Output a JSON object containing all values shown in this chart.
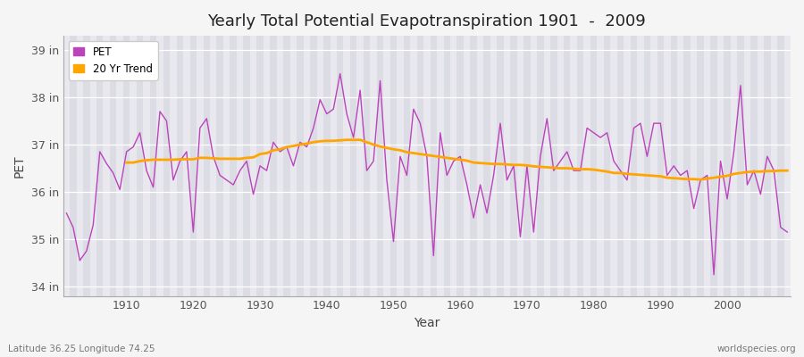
{
  "title": "Yearly Total Potential Evapotranspiration 1901  -  2009",
  "xlabel": "Year",
  "ylabel": "PET",
  "subtitle_left": "Latitude 36.25 Longitude 74.25",
  "subtitle_right": "worldspecies.org",
  "years": [
    1901,
    1902,
    1903,
    1904,
    1905,
    1906,
    1907,
    1908,
    1909,
    1910,
    1911,
    1912,
    1913,
    1914,
    1915,
    1916,
    1917,
    1918,
    1919,
    1920,
    1921,
    1922,
    1923,
    1924,
    1925,
    1926,
    1927,
    1928,
    1929,
    1930,
    1931,
    1932,
    1933,
    1934,
    1935,
    1936,
    1937,
    1938,
    1939,
    1940,
    1941,
    1942,
    1943,
    1944,
    1945,
    1946,
    1947,
    1948,
    1949,
    1950,
    1951,
    1952,
    1953,
    1954,
    1955,
    1956,
    1957,
    1958,
    1959,
    1960,
    1961,
    1962,
    1963,
    1964,
    1965,
    1966,
    1967,
    1968,
    1969,
    1970,
    1971,
    1972,
    1973,
    1974,
    1975,
    1976,
    1977,
    1978,
    1979,
    1980,
    1981,
    1982,
    1983,
    1984,
    1985,
    1986,
    1987,
    1988,
    1989,
    1990,
    1991,
    1992,
    1993,
    1994,
    1995,
    1996,
    1997,
    1998,
    1999,
    2000,
    2001,
    2002,
    2003,
    2004,
    2005,
    2006,
    2007,
    2008,
    2009
  ],
  "pet": [
    35.55,
    35.25,
    34.55,
    34.75,
    35.3,
    36.85,
    36.6,
    36.4,
    36.05,
    36.85,
    36.95,
    37.25,
    36.45,
    36.1,
    37.7,
    37.5,
    36.25,
    36.65,
    36.85,
    35.15,
    37.35,
    37.55,
    36.75,
    36.35,
    36.25,
    36.15,
    36.45,
    36.65,
    35.95,
    36.55,
    36.45,
    37.05,
    36.85,
    36.95,
    36.55,
    37.05,
    36.95,
    37.35,
    37.95,
    37.65,
    37.75,
    38.5,
    37.65,
    37.15,
    38.15,
    36.45,
    36.65,
    38.35,
    36.25,
    34.95,
    36.75,
    36.35,
    37.75,
    37.45,
    36.75,
    34.65,
    37.25,
    36.35,
    36.65,
    36.75,
    36.15,
    35.45,
    36.15,
    35.55,
    36.35,
    37.45,
    36.25,
    36.55,
    35.05,
    36.55,
    35.15,
    36.75,
    37.55,
    36.45,
    36.65,
    36.85,
    36.45,
    36.45,
    37.35,
    37.25,
    37.15,
    37.25,
    36.65,
    36.45,
    36.25,
    37.35,
    37.45,
    36.75,
    37.45,
    37.45,
    36.35,
    36.55,
    36.35,
    36.45,
    35.65,
    36.25,
    36.35,
    34.25,
    36.65,
    35.85,
    36.85,
    38.25,
    36.15,
    36.45,
    35.95,
    36.75,
    36.45,
    35.25,
    35.15
  ],
  "trend": [
    null,
    null,
    null,
    null,
    null,
    null,
    null,
    null,
    null,
    36.62,
    36.62,
    36.65,
    36.67,
    36.68,
    36.68,
    36.68,
    36.68,
    36.69,
    36.69,
    36.69,
    36.72,
    36.72,
    36.71,
    36.7,
    36.7,
    36.7,
    36.7,
    36.72,
    36.73,
    36.8,
    36.82,
    36.88,
    36.9,
    36.95,
    36.97,
    37.0,
    37.02,
    37.05,
    37.07,
    37.08,
    37.08,
    37.09,
    37.1,
    37.1,
    37.1,
    37.05,
    37.0,
    36.96,
    36.93,
    36.9,
    36.88,
    36.84,
    36.82,
    36.8,
    36.78,
    36.76,
    36.74,
    36.72,
    36.7,
    36.68,
    36.66,
    36.62,
    36.61,
    36.6,
    36.59,
    36.59,
    36.58,
    36.57,
    36.57,
    36.56,
    36.54,
    36.53,
    36.52,
    36.51,
    36.5,
    36.5,
    36.49,
    36.48,
    36.48,
    36.47,
    36.45,
    36.43,
    36.4,
    36.4,
    36.38,
    36.37,
    36.36,
    36.35,
    36.34,
    36.33,
    36.3,
    36.29,
    36.28,
    36.27,
    36.27,
    36.26,
    36.28,
    36.3,
    36.32,
    36.34,
    36.38,
    36.4,
    36.42,
    36.43,
    36.43,
    36.44,
    36.44,
    36.45,
    36.45
  ],
  "pet_color": "#bb44bb",
  "trend_color": "#ffa500",
  "fig_bg_color": "#f5f5f5",
  "plot_bg_color": "#e8e8ee",
  "plot_bg_color_alt": "#dcdce4",
  "grid_color": "#ffffff",
  "ylim": [
    33.8,
    39.3
  ],
  "yticks": [
    34,
    35,
    36,
    37,
    38,
    39
  ],
  "ytick_labels": [
    "34 in",
    "35 in",
    "36 in",
    "37 in",
    "38 in",
    "39 in"
  ],
  "xticks": [
    1910,
    1920,
    1930,
    1940,
    1950,
    1960,
    1970,
    1980,
    1990,
    2000
  ],
  "legend_pet": "PET",
  "legend_trend": "20 Yr Trend"
}
